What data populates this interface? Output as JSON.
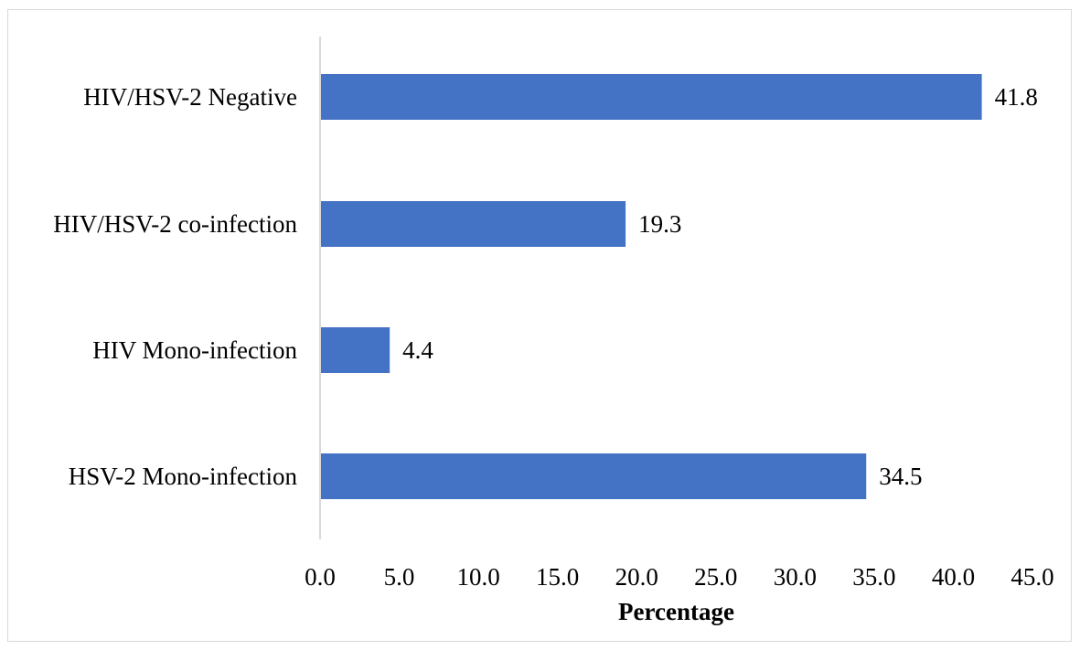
{
  "chart_data": {
    "type": "bar",
    "orientation": "horizontal",
    "categories": [
      "HIV/HSV-2 Negative",
      "HIV/HSV-2 co-infection",
      "HIV Mono-infection",
      "HSV-2 Mono-infection"
    ],
    "values": [
      41.8,
      19.3,
      4.4,
      34.5
    ],
    "value_labels": [
      "41.8",
      "19.3",
      "4.4",
      "34.5"
    ],
    "xlabel": "Percentage",
    "ylabel": "",
    "xlim": [
      0,
      45
    ],
    "x_ticks": [
      0,
      5,
      10,
      15,
      20,
      25,
      30,
      35,
      40,
      45
    ],
    "x_tick_labels": [
      "0.0",
      "5.0",
      "10.0",
      "15.0",
      "20.0",
      "25.0",
      "30.0",
      "35.0",
      "40.0",
      "45.0"
    ],
    "grid": false,
    "legend": "none",
    "bar_color": "#4472C4",
    "axis_color": "#d9d9d9"
  }
}
